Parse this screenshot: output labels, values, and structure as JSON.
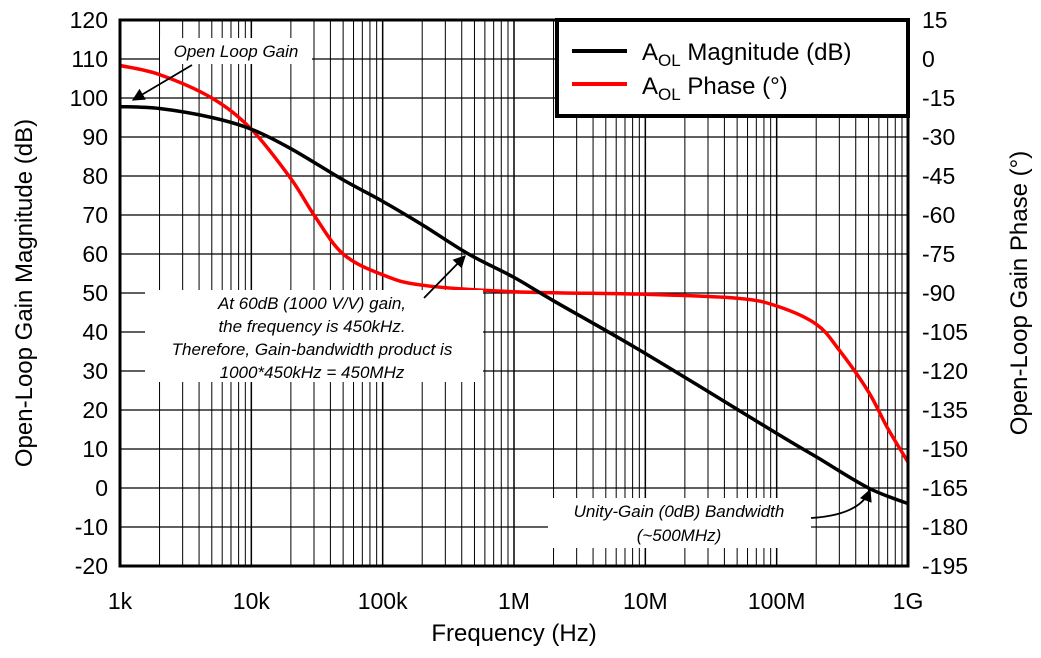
{
  "chart_data": {
    "type": "line",
    "xlabel": "Frequency (Hz)",
    "ylabel": "Open-Loop Gain Magnitude (dB)",
    "y2label": "Open-Loop Gain Phase (°)",
    "xscale": "log",
    "xlim": [
      1000,
      1000000000
    ],
    "ylim": [
      -20,
      120
    ],
    "y2lim": [
      -195,
      15
    ],
    "grid": true,
    "legend_position": "top-right",
    "x_ticks": [
      {
        "value": 1000,
        "label": "1k"
      },
      {
        "value": 10000,
        "label": "10k"
      },
      {
        "value": 100000,
        "label": "100k"
      },
      {
        "value": 1000000,
        "label": "1M"
      },
      {
        "value": 10000000,
        "label": "10M"
      },
      {
        "value": 100000000,
        "label": "100M"
      },
      {
        "value": 1000000000,
        "label": "1G"
      }
    ],
    "y_ticks": [
      "120",
      "110",
      "100",
      "90",
      "80",
      "70",
      "60",
      "50",
      "40",
      "30",
      "20",
      "10",
      "0",
      "-10",
      "-20"
    ],
    "y2_ticks": [
      "15",
      "0",
      "-15",
      "-30",
      "-45",
      "-60",
      "-75",
      "-90",
      "-105",
      "-120",
      "-135",
      "-150",
      "-165",
      "-180",
      "-195"
    ],
    "series": [
      {
        "name": "A_OL Magnitude (dB)",
        "legend_main": "A",
        "legend_sub": "OL",
        "legend_rest": " Magnitude (dB)",
        "axis": "left",
        "color": "#000000",
        "x": [
          1000,
          2000,
          5000,
          10000,
          20000,
          50000,
          100000,
          200000,
          450000,
          1000000,
          2000000,
          10000000,
          100000000,
          200000000,
          500000000,
          1000000000
        ],
        "y": [
          97.8,
          97.3,
          95,
          92,
          87,
          79,
          73.5,
          67.5,
          60,
          54,
          48,
          34.5,
          14,
          8,
          0,
          -4
        ]
      },
      {
        "name": "A_OL Phase (°)",
        "legend_main": "A",
        "legend_sub": "OL",
        "legend_rest": " Phase (°)",
        "axis": "right",
        "color": "#ff0000",
        "x": [
          1000,
          2000,
          5000,
          10000,
          20000,
          30000,
          50000,
          100000,
          200000,
          1000000,
          10000000,
          50000000,
          100000000,
          200000000,
          300000000,
          500000000,
          700000000,
          1000000000
        ],
        "y": [
          -2.5,
          -6,
          -15,
          -27,
          -46,
          -60,
          -75,
          -83,
          -87,
          -89.5,
          -90.5,
          -92,
          -95,
          -102,
          -112,
          -128,
          -142,
          -155
        ]
      }
    ],
    "annotations": {
      "open_loop": "Open Loop Gain",
      "gbw": [
        "At 60dB (1000 V/V) gain,",
        "the frequency is 450kHz.",
        "Therefore, Gain-bandwidth product is",
        "1000*450kHz = 450MHz"
      ],
      "unity": [
        "Unity-Gain (0dB) Bandwidth",
        "(~500MHz)"
      ]
    }
  }
}
